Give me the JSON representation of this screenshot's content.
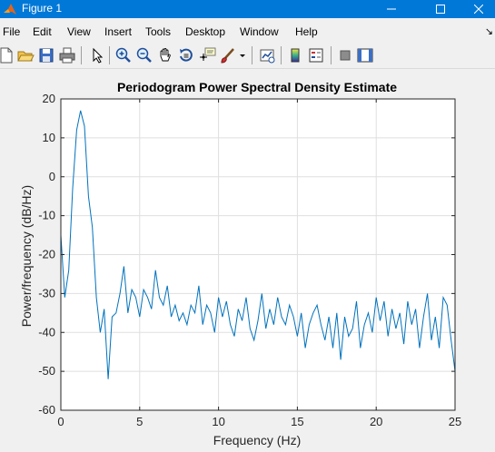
{
  "window": {
    "title": "Figure 1",
    "minimize_icon": "minimize-icon",
    "maximize_icon": "maximize-icon",
    "close_icon": "close-icon"
  },
  "menu": {
    "items": [
      {
        "label": "File"
      },
      {
        "label": "Edit"
      },
      {
        "label": "View"
      },
      {
        "label": "Insert"
      },
      {
        "label": "Tools"
      },
      {
        "label": "Desktop"
      },
      {
        "label": "Window"
      },
      {
        "label": "Help"
      }
    ]
  },
  "toolbar": {
    "buttons": [
      {
        "icon": "new-figure-icon"
      },
      {
        "icon": "open-file-icon"
      },
      {
        "icon": "save-icon"
      },
      {
        "icon": "print-icon"
      },
      {
        "icon": "edit-plot-arrow-icon"
      },
      {
        "icon": "zoom-in-icon"
      },
      {
        "icon": "zoom-out-icon"
      },
      {
        "icon": "pan-hand-icon"
      },
      {
        "icon": "rotate-3d-icon"
      },
      {
        "icon": "data-cursor-icon"
      },
      {
        "icon": "brush-icon"
      },
      {
        "icon": "dropdown-arrow-icon"
      },
      {
        "icon": "link-plot-icon"
      },
      {
        "icon": "insert-colorbar-icon"
      },
      {
        "icon": "insert-legend-icon"
      },
      {
        "icon": "hide-plot-tools-icon"
      },
      {
        "icon": "show-plot-tools-icon"
      }
    ]
  },
  "colors": {
    "titlebar": "#0078d7",
    "line": "#0072bd",
    "grid": "#dfdfdf",
    "axes_background": "#ffffff",
    "figure_background": "#f0f0f0"
  },
  "chart_data": {
    "type": "line",
    "title": "Periodogram Power Spectral Density Estimate",
    "xlabel": "Frequency (Hz)",
    "ylabel": "Power/frequency (dB/Hz)",
    "xlim": [
      0,
      25
    ],
    "ylim": [
      -60,
      20
    ],
    "xticks": [
      0,
      5,
      10,
      15,
      20,
      25
    ],
    "yticks": [
      -60,
      -50,
      -40,
      -30,
      -20,
      -10,
      0,
      10,
      20
    ],
    "grid": true,
    "series": [
      {
        "x": [
          0,
          0.25,
          0.5,
          0.75,
          1.0,
          1.25,
          1.5,
          1.75,
          2.0,
          2.25,
          2.5,
          2.75,
          3.0,
          3.25,
          3.5,
          3.75,
          4.0,
          4.25,
          4.5,
          4.75,
          5.0,
          5.25,
          5.5,
          5.75,
          6.0,
          6.25,
          6.5,
          6.75,
          7.0,
          7.25,
          7.5,
          7.75,
          8.0,
          8.25,
          8.5,
          8.75,
          9.0,
          9.25,
          9.5,
          9.75,
          10.0,
          10.25,
          10.5,
          10.75,
          11.0,
          11.25,
          11.5,
          11.75,
          12.0,
          12.25,
          12.5,
          12.75,
          13.0,
          13.25,
          13.5,
          13.75,
          14.0,
          14.25,
          14.5,
          14.75,
          15.0,
          15.25,
          15.5,
          15.75,
          16.0,
          16.25,
          16.5,
          16.75,
          17.0,
          17.25,
          17.5,
          17.75,
          18.0,
          18.25,
          18.5,
          18.75,
          19.0,
          19.25,
          19.5,
          19.75,
          20.0,
          20.25,
          20.5,
          20.75,
          21.0,
          21.25,
          21.5,
          21.75,
          22.0,
          22.25,
          22.5,
          22.75,
          23.0,
          23.25,
          23.5,
          23.75,
          24.0,
          24.25,
          24.5,
          24.75,
          25.0
        ],
        "y": [
          -15,
          -31,
          -24,
          -3,
          12,
          17,
          13,
          -5,
          -13,
          -31,
          -40,
          -34,
          -52,
          -36,
          -35,
          -30,
          -23,
          -35,
          -29,
          -31,
          -36,
          -29,
          -31,
          -34,
          -24,
          -31,
          -33,
          -28,
          -36,
          -33,
          -37,
          -35,
          -38,
          -33,
          -35,
          -28,
          -38,
          -33,
          -35,
          -40,
          -31,
          -36,
          -32,
          -38,
          -41,
          -34,
          -37,
          -31,
          -39,
          -42,
          -37,
          -30,
          -39,
          -34,
          -38,
          -31,
          -36,
          -38,
          -33,
          -36,
          -41,
          -35,
          -44,
          -38,
          -35,
          -33,
          -38,
          -42,
          -36,
          -44,
          -35,
          -47,
          -36,
          -41,
          -39,
          -32,
          -44,
          -38,
          -35,
          -40,
          -31,
          -37,
          -32,
          -41,
          -34,
          -39,
          -35,
          -43,
          -32,
          -38,
          -34,
          -44,
          -36,
          -30,
          -42,
          -36,
          -44,
          -31,
          -33,
          -42,
          -50
        ]
      }
    ]
  }
}
